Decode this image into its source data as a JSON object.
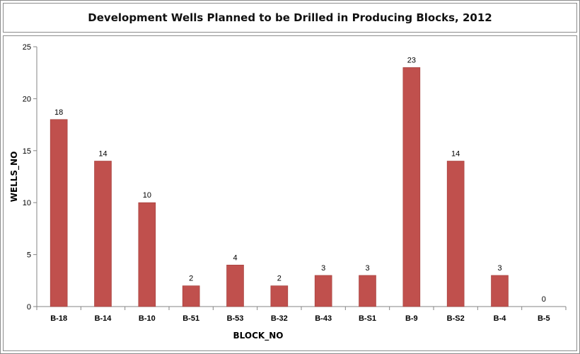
{
  "chart_data": {
    "type": "bar",
    "title": "Development Wells Planned to be Drilled in Producing Blocks, 2012",
    "xlabel": "BLOCK_NO",
    "ylabel": "WELLS_NO",
    "categories": [
      "B-18",
      "B-14",
      "B-10",
      "B-51",
      "B-53",
      "B-32",
      "B-43",
      "B-S1",
      "B-9",
      "B-S2",
      "B-4",
      "B-5"
    ],
    "values": [
      18,
      14,
      10,
      2,
      4,
      2,
      3,
      3,
      23,
      14,
      3,
      0
    ],
    "ylim": [
      0,
      25
    ],
    "yticks": [
      0,
      5,
      10,
      15,
      20,
      25
    ],
    "grid": false,
    "legend": "none",
    "bar_color": "#c0504d",
    "bar_edge_color": "#a03c39"
  }
}
